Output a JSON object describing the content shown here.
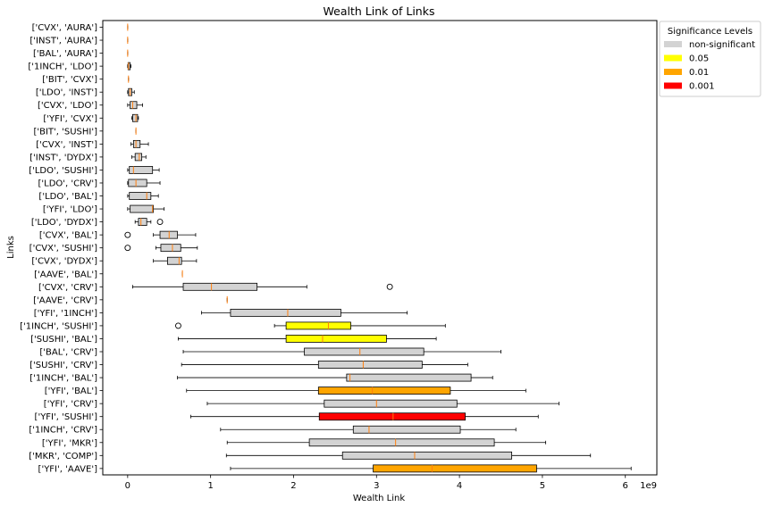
{
  "chart_data": {
    "type": "boxplot",
    "orientation": "horizontal",
    "title": "Wealth Link of Links",
    "xlabel": "Wealth Link",
    "ylabel": "Links",
    "x_scale_label": "1e9",
    "xlim": [
      -0.3,
      6.38
    ],
    "x_ticks": [
      0,
      1,
      2,
      3,
      4,
      5,
      6
    ],
    "x_tick_labels": [
      "0",
      "1",
      "2",
      "3",
      "4",
      "5",
      "6"
    ],
    "grid": false,
    "legend": {
      "title": "Significance Levels",
      "placement": "outside-top-right",
      "entries": [
        {
          "label": "non-significant",
          "color": "#d3d3d3"
        },
        {
          "label": "0.05",
          "color": "#ffff00"
        },
        {
          "label": "0.01",
          "color": "#ffa500"
        },
        {
          "label": "0.001",
          "color": "#ff0000"
        }
      ]
    },
    "median_color": "#ff7f0e",
    "boxes": [
      {
        "label": "['CVX', 'AURA']",
        "min": 0,
        "q1": 0,
        "median": 0,
        "q3": 0,
        "max": 0,
        "outliers": [],
        "level": "non-significant"
      },
      {
        "label": "['INST', 'AURA']",
        "min": 0,
        "q1": 0,
        "median": 0,
        "q3": 0,
        "max": 0,
        "outliers": [],
        "level": "non-significant"
      },
      {
        "label": "['BAL', 'AURA']",
        "min": 0,
        "q1": 0,
        "median": 0,
        "q3": 0,
        "max": 0,
        "outliers": [],
        "level": "non-significant"
      },
      {
        "label": "['1INCH', 'LDO']",
        "min": 0,
        "q1": 0.005,
        "median": 0.01,
        "q3": 0.03,
        "max": 0.04,
        "outliers": [],
        "level": "non-significant"
      },
      {
        "label": "['BIT', 'CVX']",
        "min": 0.01,
        "q1": 0.01,
        "median": 0.01,
        "q3": 0.01,
        "max": 0.01,
        "outliers": [],
        "level": "non-significant"
      },
      {
        "label": "['LDO', 'INST']",
        "min": 0,
        "q1": 0.01,
        "median": 0.03,
        "q3": 0.05,
        "max": 0.08,
        "outliers": [],
        "level": "non-significant"
      },
      {
        "label": "['CVX', 'LDO']",
        "min": 0,
        "q1": 0.03,
        "median": 0.06,
        "q3": 0.11,
        "max": 0.18,
        "outliers": [],
        "level": "non-significant"
      },
      {
        "label": "['YFI', 'CVX']",
        "min": 0.05,
        "q1": 0.06,
        "median": 0.1,
        "q3": 0.12,
        "max": 0.13,
        "outliers": [],
        "level": "non-significant"
      },
      {
        "label": "['BIT', 'SUSHI']",
        "min": 0.1,
        "q1": 0.1,
        "median": 0.1,
        "q3": 0.1,
        "max": 0.1,
        "outliers": [],
        "level": "non-significant"
      },
      {
        "label": "['CVX', 'INST']",
        "min": 0.04,
        "q1": 0.07,
        "median": 0.1,
        "q3": 0.15,
        "max": 0.25,
        "outliers": [],
        "level": "non-significant"
      },
      {
        "label": "['INST', 'DYDX']",
        "min": 0.05,
        "q1": 0.09,
        "median": 0.14,
        "q3": 0.17,
        "max": 0.22,
        "outliers": [],
        "level": "non-significant"
      },
      {
        "label": "['LDO', 'SUSHI']",
        "min": 0,
        "q1": 0.02,
        "median": 0.07,
        "q3": 0.3,
        "max": 0.38,
        "outliers": [],
        "level": "non-significant"
      },
      {
        "label": "['LDO', 'CRV']",
        "min": 0,
        "q1": 0.01,
        "median": 0.1,
        "q3": 0.23,
        "max": 0.39,
        "outliers": [],
        "level": "non-significant"
      },
      {
        "label": "['LDO', 'BAL']",
        "min": 0,
        "q1": 0.02,
        "median": 0.23,
        "q3": 0.28,
        "max": 0.37,
        "outliers": [],
        "level": "non-significant"
      },
      {
        "label": "['YFI', 'LDO']",
        "min": 0,
        "q1": 0.03,
        "median": 0.3,
        "q3": 0.31,
        "max": 0.44,
        "outliers": [],
        "level": "non-significant"
      },
      {
        "label": "['LDO', 'DYDX']",
        "min": 0.09,
        "q1": 0.13,
        "median": 0.16,
        "q3": 0.23,
        "max": 0.28,
        "outliers": [
          0.39
        ],
        "level": "non-significant"
      },
      {
        "label": "['CVX', 'BAL']",
        "min": 0.31,
        "q1": 0.39,
        "median": 0.5,
        "q3": 0.6,
        "max": 0.82,
        "outliers": [
          0
        ],
        "level": "non-significant"
      },
      {
        "label": "['CVX', 'SUSHI']",
        "min": 0.34,
        "q1": 0.4,
        "median": 0.54,
        "q3": 0.64,
        "max": 0.84,
        "outliers": [
          0
        ],
        "level": "non-significant"
      },
      {
        "label": "['CVX', 'DYDX']",
        "min": 0.31,
        "q1": 0.48,
        "median": 0.62,
        "q3": 0.65,
        "max": 0.83,
        "outliers": [],
        "level": "non-significant"
      },
      {
        "label": "['AAVE', 'BAL']",
        "min": 0.66,
        "q1": 0.66,
        "median": 0.66,
        "q3": 0.66,
        "max": 0.66,
        "outliers": [],
        "level": "non-significant"
      },
      {
        "label": "['CVX', 'CRV']",
        "min": 0.06,
        "q1": 0.67,
        "median": 1.01,
        "q3": 1.56,
        "max": 2.16,
        "outliers": [
          3.16
        ],
        "level": "non-significant"
      },
      {
        "label": "['AAVE', 'CRV']",
        "min": 1.2,
        "q1": 1.2,
        "median": 1.2,
        "q3": 1.2,
        "max": 1.2,
        "outliers": [],
        "level": "non-significant"
      },
      {
        "label": "['YFI', '1INCH']",
        "min": 0.89,
        "q1": 1.24,
        "median": 1.93,
        "q3": 2.57,
        "max": 3.37,
        "outliers": [],
        "level": "non-significant"
      },
      {
        "label": "['1INCH', 'SUSHI']",
        "min": 1.77,
        "q1": 1.91,
        "median": 2.42,
        "q3": 2.69,
        "max": 3.83,
        "outliers": [
          0.61
        ],
        "level": "0.05"
      },
      {
        "label": "['SUSHI', 'BAL']",
        "min": 0.61,
        "q1": 1.91,
        "median": 2.35,
        "q3": 3.12,
        "max": 3.72,
        "outliers": [],
        "level": "0.05"
      },
      {
        "label": "['BAL', 'CRV']",
        "min": 0.67,
        "q1": 2.13,
        "median": 2.8,
        "q3": 3.57,
        "max": 4.5,
        "outliers": [],
        "level": "non-significant"
      },
      {
        "label": "['SUSHI', 'CRV']",
        "min": 0.65,
        "q1": 2.3,
        "median": 2.84,
        "q3": 3.55,
        "max": 4.1,
        "outliers": [],
        "level": "non-significant"
      },
      {
        "label": "['1INCH', 'BAL']",
        "min": 0.6,
        "q1": 2.64,
        "median": 2.68,
        "q3": 4.14,
        "max": 4.4,
        "outliers": [],
        "level": "non-significant"
      },
      {
        "label": "['YFI', 'BAL']",
        "min": 0.71,
        "q1": 2.3,
        "median": 2.95,
        "q3": 3.89,
        "max": 4.8,
        "outliers": [],
        "level": "0.01"
      },
      {
        "label": "['YFI', 'CRV']",
        "min": 0.96,
        "q1": 2.37,
        "median": 3,
        "q3": 3.97,
        "max": 5.2,
        "outliers": [],
        "level": "non-significant"
      },
      {
        "label": "['YFI', 'SUSHI']",
        "min": 0.76,
        "q1": 2.31,
        "median": 3.2,
        "q3": 4.07,
        "max": 4.95,
        "outliers": [],
        "level": "0.001"
      },
      {
        "label": "['1INCH', 'CRV']",
        "min": 1.12,
        "q1": 2.72,
        "median": 2.91,
        "q3": 4.01,
        "max": 4.68,
        "outliers": [],
        "level": "non-significant"
      },
      {
        "label": "['YFI', 'MKR']",
        "min": 1.2,
        "q1": 2.19,
        "median": 3.23,
        "q3": 4.42,
        "max": 5.04,
        "outliers": [],
        "level": "non-significant"
      },
      {
        "label": "['MKR', 'COMP']",
        "min": 1.19,
        "q1": 2.59,
        "median": 3.46,
        "q3": 4.63,
        "max": 5.58,
        "outliers": [],
        "level": "non-significant"
      },
      {
        "label": "['YFI', 'AAVE']",
        "min": 1.24,
        "q1": 2.96,
        "median": 3.67,
        "q3": 4.93,
        "max": 6.07,
        "outliers": [],
        "level": "0.01"
      }
    ]
  }
}
